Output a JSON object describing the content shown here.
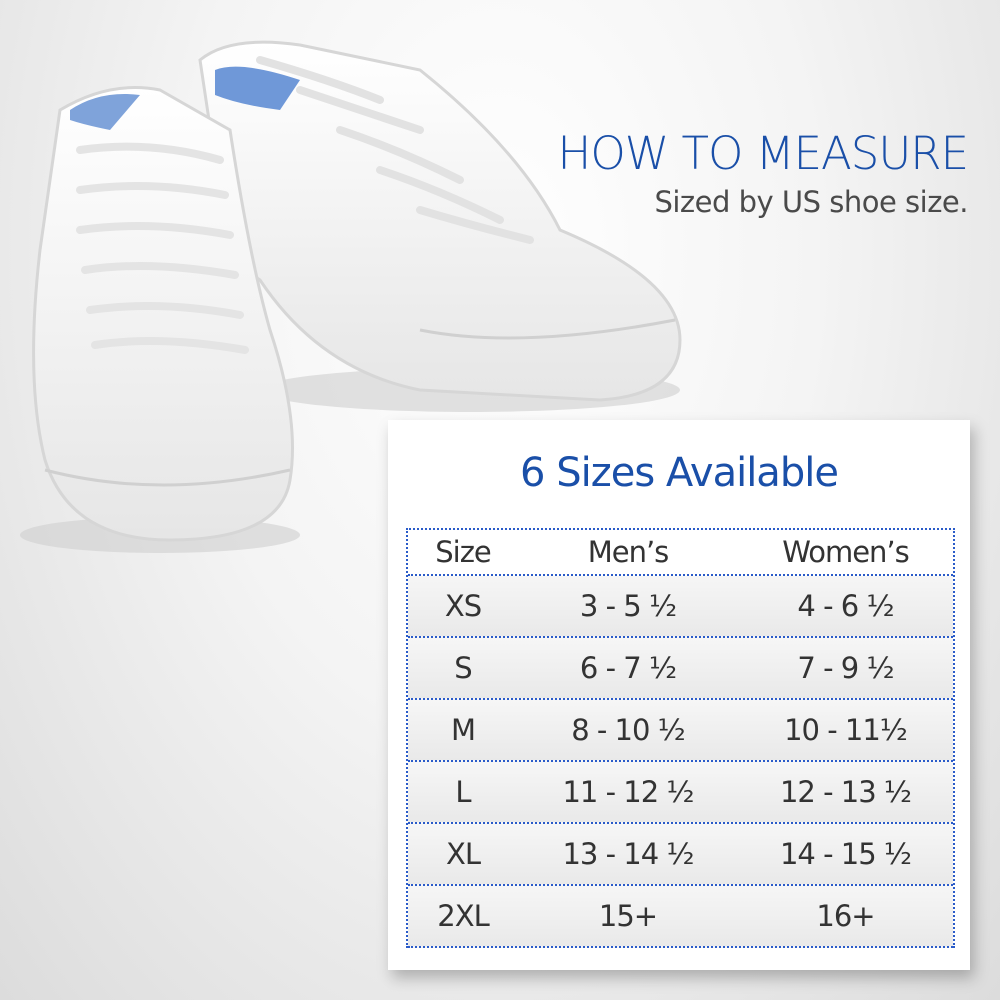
{
  "header": {
    "title": "HOW TO MEASURE",
    "subtitle": "Sized by US shoe size."
  },
  "colors": {
    "accent": "#1a4fa8",
    "table_border": "#2a5bc9",
    "text": "#333333"
  },
  "image": {
    "subject": "white-sneakers"
  },
  "size_chart": {
    "title": "6 Sizes Available",
    "columns": [
      "Size",
      "Men’s",
      "Women’s"
    ],
    "rows": [
      [
        "XS",
        "3 - 5 ½",
        "4 - 6 ½"
      ],
      [
        "S",
        "6 - 7 ½",
        "7 - 9 ½"
      ],
      [
        "M",
        "8 - 10 ½",
        "10 - 11½"
      ],
      [
        "L",
        "11 - 12 ½",
        "12 - 13 ½"
      ],
      [
        "XL",
        "13 - 14 ½",
        "14 - 15 ½"
      ],
      [
        "2XL",
        "15+",
        "16+"
      ]
    ]
  }
}
